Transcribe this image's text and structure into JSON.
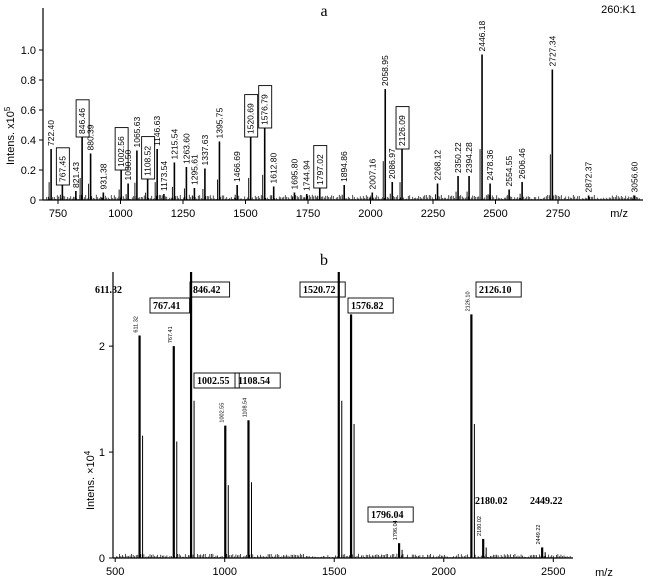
{
  "chart_data": [
    {
      "type": "spectrum",
      "title": "a",
      "corner_label": "260:K1",
      "xlabel": "m/z",
      "ylabel_main": "Intens. x10",
      "ylabel_exp": "5",
      "xlim": [
        690,
        3090
      ],
      "ylim": [
        0,
        1.28
      ],
      "xticks": [
        750,
        1000,
        1250,
        1500,
        1750,
        2000,
        2250,
        2500,
        2750
      ],
      "yticks": [
        {
          "v": 0,
          "t": "0"
        },
        {
          "v": 0.2,
          "t": "0.2"
        },
        {
          "v": 0.4,
          "t": "0.4"
        },
        {
          "v": 0.6,
          "t": "0.6"
        },
        {
          "v": 0.8,
          "t": "0.8"
        },
        {
          "v": 1.0,
          "t": "1.0"
        }
      ],
      "peaks": [
        {
          "x": 722.4,
          "y": 0.34,
          "label": "722.40"
        },
        {
          "x": 767.45,
          "y": 0.1,
          "label": "767.45",
          "boxed": true
        },
        {
          "x": 821.43,
          "y": 0.06,
          "label": "821.43"
        },
        {
          "x": 846.46,
          "y": 0.42,
          "label": "846.46",
          "boxed": true
        },
        {
          "x": 880.39,
          "y": 0.31,
          "label": "880.39"
        },
        {
          "x": 931.38,
          "y": 0.05,
          "label": "931.38"
        },
        {
          "x": 1002.56,
          "y": 0.2,
          "label": "1002.56",
          "boxed": true
        },
        {
          "x": 1030.5,
          "y": 0.11,
          "label": "1030.50"
        },
        {
          "x": 1065.63,
          "y": 0.33,
          "label": "1065.63"
        },
        {
          "x": 1108.52,
          "y": 0.14,
          "label": "1108.52",
          "boxed": true
        },
        {
          "x": 1146.63,
          "y": 0.34,
          "label": "1146.63"
        },
        {
          "x": 1173.54,
          "y": 0.04,
          "label": "1173.54"
        },
        {
          "x": 1215.54,
          "y": 0.25,
          "label": "1215.54"
        },
        {
          "x": 1263.6,
          "y": 0.22,
          "label": "1263.60"
        },
        {
          "x": 1295.61,
          "y": 0.08,
          "label": "1295.61"
        },
        {
          "x": 1337.63,
          "y": 0.21,
          "label": "1337.63"
        },
        {
          "x": 1395.75,
          "y": 0.39,
          "label": "1395.75"
        },
        {
          "x": 1466.69,
          "y": 0.1,
          "label": "1466.69"
        },
        {
          "x": 1520.69,
          "y": 0.42,
          "label": "1520.69",
          "boxed": true
        },
        {
          "x": 1576.79,
          "y": 0.48,
          "label": "1576.79",
          "boxed": true
        },
        {
          "x": 1612.8,
          "y": 0.09,
          "label": "1612.80"
        },
        {
          "x": 1695.8,
          "y": 0.05,
          "label": "1695.80"
        },
        {
          "x": 1744.94,
          "y": 0.04,
          "label": "1744.94"
        },
        {
          "x": 1797.02,
          "y": 0.08,
          "label": "1797.02",
          "boxed": true
        },
        {
          "x": 1894.86,
          "y": 0.1,
          "label": "1894.86"
        },
        {
          "x": 2007.16,
          "y": 0.05,
          "label": "2007.16"
        },
        {
          "x": 2058.95,
          "y": 0.74,
          "label": "2058.95"
        },
        {
          "x": 2086.97,
          "y": 0.12,
          "label": "2086.97"
        },
        {
          "x": 2126.09,
          "y": 0.34,
          "label": "2126.09",
          "boxed": true
        },
        {
          "x": 2268.12,
          "y": 0.11,
          "label": "2268.12"
        },
        {
          "x": 2350.22,
          "y": 0.16,
          "label": "2350.22"
        },
        {
          "x": 2394.28,
          "y": 0.16,
          "label": "2394.28"
        },
        {
          "x": 2446.18,
          "y": 0.97,
          "label": "2446.18"
        },
        {
          "x": 2478.36,
          "y": 0.11,
          "label": "2478.36"
        },
        {
          "x": 2554.55,
          "y": 0.07,
          "label": "2554.55"
        },
        {
          "x": 2606.46,
          "y": 0.12,
          "label": "2606.46"
        },
        {
          "x": 2727.34,
          "y": 0.87,
          "label": "2727.34"
        },
        {
          "x": 2872.37,
          "y": 0.03,
          "label": "2872.37"
        },
        {
          "x": 3056.6,
          "y": 0.03,
          "label": "3056.60"
        }
      ]
    },
    {
      "type": "spectrum",
      "title": "b",
      "xlabel": "m/z",
      "ylabel_main": "Intens. ×10",
      "ylabel_exp": "4",
      "xlim": [
        490,
        2590
      ],
      "ylim": [
        0,
        2.7
      ],
      "xticks": [
        500,
        1000,
        1500,
        2000,
        2500
      ],
      "yticks": [
        {
          "v": 0,
          "t": "0"
        },
        {
          "v": 1,
          "t": "1"
        },
        {
          "v": 2,
          "t": "2"
        }
      ],
      "peaks": [
        {
          "x": 611.32,
          "y": 2.1,
          "label": "611.32",
          "small": "611.32"
        },
        {
          "x": 767.41,
          "y": 2.0,
          "label": "767.41",
          "boxed": true,
          "small": "767.41"
        },
        {
          "x": 846.42,
          "y": 2.7,
          "label": "846.42",
          "boxed": true
        },
        {
          "x": 1002.55,
          "y": 1.25,
          "label": "1002.55",
          "boxed": true,
          "small": "1002.55"
        },
        {
          "x": 1108.54,
          "y": 1.3,
          "label": "1108.54",
          "boxed": true,
          "small": "1108.54"
        },
        {
          "x": 1520.72,
          "y": 2.7,
          "label": "1520.72",
          "boxed": true
        },
        {
          "x": 1576.82,
          "y": 2.3,
          "label": "1576.82",
          "boxed": true
        },
        {
          "x": 1796.04,
          "y": 0.14,
          "label": "1796.04",
          "boxed": true,
          "small": "1796.04"
        },
        {
          "x": 2126.1,
          "y": 2.3,
          "label": "2126.10",
          "boxed": true,
          "small": "2126.10"
        },
        {
          "x": 2180.02,
          "y": 0.18,
          "label": "2180.02",
          "small": "2180.02"
        },
        {
          "x": 2449.22,
          "y": 0.1,
          "label": "2449.22",
          "small": "2449.22"
        }
      ]
    }
  ]
}
